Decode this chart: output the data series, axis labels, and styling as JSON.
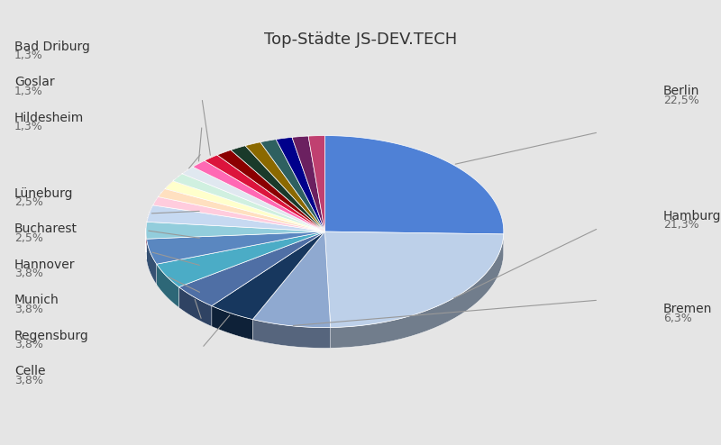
{
  "title": "Top-Städte JS-DEV.TECH",
  "background_color": "#e5e5e5",
  "slices": [
    {
      "label": "Berlin",
      "pct": "22,5%",
      "value": 22.5,
      "color": "#4f81d6",
      "side": "right"
    },
    {
      "label": "Hamburg",
      "pct": "21,3%",
      "value": 21.3,
      "color": "#bdd0e9",
      "side": "right"
    },
    {
      "label": "Bremen",
      "pct": "6,3%",
      "value": 6.3,
      "color": "#8fa9d0",
      "side": "right"
    },
    {
      "label": "Celle",
      "pct": "3,8%",
      "value": 3.8,
      "color": "#17375e",
      "side": "left"
    },
    {
      "label": "Regensburg",
      "pct": "3,8%",
      "value": 3.8,
      "color": "#4f6fa5",
      "side": "left"
    },
    {
      "label": "Munich",
      "pct": "3,8%",
      "value": 3.8,
      "color": "#4bacc6",
      "side": "left"
    },
    {
      "label": "Hannover",
      "pct": "3,8%",
      "value": 3.8,
      "color": "#5a87c0",
      "side": "left"
    },
    {
      "label": "Bucharest",
      "pct": "2,5%",
      "value": 2.5,
      "color": "#92cddc",
      "side": "left"
    },
    {
      "label": "Lüneburg",
      "pct": "2,5%",
      "value": 2.5,
      "color": "#c6d9f1",
      "side": "left"
    },
    {
      "label": "",
      "pct": "",
      "value": 1.3,
      "color": "#ffccdd",
      "side": "none"
    },
    {
      "label": "",
      "pct": "",
      "value": 1.3,
      "color": "#ffe0c0",
      "side": "none"
    },
    {
      "label": "",
      "pct": "",
      "value": 1.3,
      "color": "#ffffcc",
      "side": "none"
    },
    {
      "label": "",
      "pct": "",
      "value": 1.3,
      "color": "#d0f0e0",
      "side": "none"
    },
    {
      "label": "Hildesheim",
      "pct": "1,3%",
      "value": 1.3,
      "color": "#e0e8f0",
      "side": "left"
    },
    {
      "label": "Goslar",
      "pct": "1,3%",
      "value": 1.3,
      "color": "#ff69b4",
      "side": "left"
    },
    {
      "label": "Bad Driburg",
      "pct": "1,3%",
      "value": 1.3,
      "color": "#dc143c",
      "side": "left"
    },
    {
      "label": "",
      "pct": "",
      "value": 1.3,
      "color": "#8b0000",
      "side": "none"
    },
    {
      "label": "",
      "pct": "",
      "value": 1.3,
      "color": "#1a3a2a",
      "side": "none"
    },
    {
      "label": "",
      "pct": "",
      "value": 1.3,
      "color": "#8b6900",
      "side": "none"
    },
    {
      "label": "",
      "pct": "",
      "value": 1.3,
      "color": "#2e6060",
      "side": "none"
    },
    {
      "label": "",
      "pct": "",
      "value": 1.3,
      "color": "#00008b",
      "side": "none"
    },
    {
      "label": "",
      "pct": "",
      "value": 1.3,
      "color": "#6b2060",
      "side": "none"
    },
    {
      "label": "",
      "pct": "",
      "value": 1.3,
      "color": "#c04070",
      "side": "none"
    }
  ],
  "title_fontsize": 13,
  "label_fontsize": 10,
  "pct_fontsize": 9,
  "label_color": "#333333",
  "pct_color": "#666666"
}
